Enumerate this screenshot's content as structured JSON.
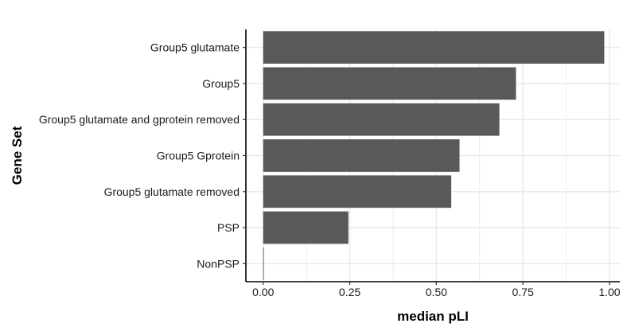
{
  "chart_data": {
    "type": "bar",
    "orientation": "horizontal",
    "categories": [
      "Group5 glutamate",
      "Group5",
      "Group5 glutamate and gprotein removed",
      "Group5 Gprotein",
      "Group5 glutamate removed",
      "PSP",
      "NonPSP"
    ],
    "values": [
      0.985,
      0.73,
      0.682,
      0.567,
      0.543,
      0.246,
      0.002
    ],
    "xlabel": "median pLI",
    "ylabel": "Gene Set",
    "xlim": [
      -0.05,
      1.03
    ],
    "xticks": [
      0,
      0.25,
      0.5,
      0.75,
      1
    ],
    "xtick_labels": [
      "0.00",
      "0.25",
      "0.50",
      "0.75",
      "1.00"
    ],
    "grid": true,
    "bar_color": "#595959",
    "grid_color": "#ebebeb",
    "axis_color": "#000000"
  }
}
